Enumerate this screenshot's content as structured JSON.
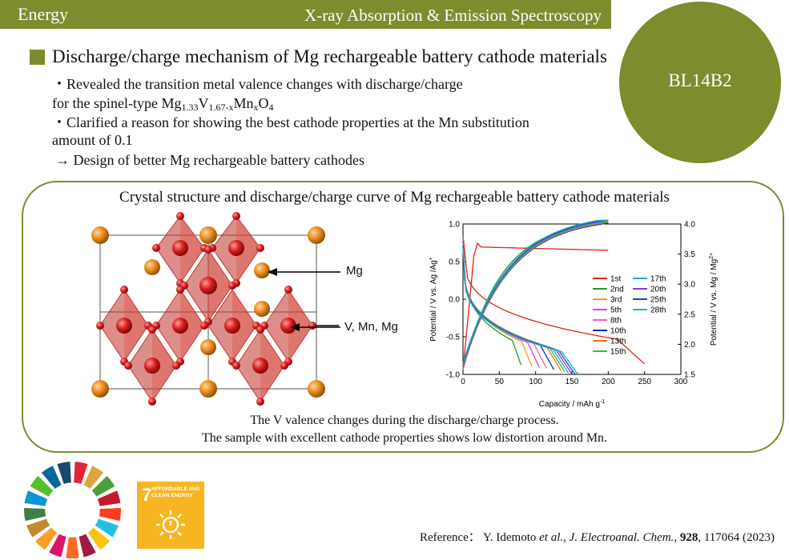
{
  "header": {
    "category": "Energy",
    "technique": "X-ray Absorption & Emission Spectroscopy"
  },
  "beamline": "BL14B2",
  "section_title": "Discharge/charge mechanism of Mg rechargeable battery cathode materials",
  "bullets": {
    "line1": "・Revealed the transition metal valence changes with discharge/charge",
    "line2_prefix": "for the spinel-type Mg",
    "formula_mg_sub": "1.33",
    "formula_v": "V",
    "formula_v_sub": "1.67-x",
    "formula_mn": "Mn",
    "formula_mn_sub": "x",
    "formula_o": "O",
    "formula_o_sub": "4",
    "line3": "・Clarified a reason for showing the best cathode properties at the Mn substitution",
    "line4": "amount of 0.1",
    "line5": "→ Design of better Mg rechargeable battery cathodes"
  },
  "figure": {
    "title": "Crystal structure and discharge/charge curve of Mg rechargeable battery cathode materials",
    "labels": {
      "mg": "Mg",
      "vmnmg": "V, Mn, Mg"
    },
    "caption1": "The V valence changes during the discharge/charge process.",
    "caption2": "The sample with excellent cathode properties shows low distortion around Mn."
  },
  "chart_data": {
    "type": "line",
    "xlabel": "Capacity / mAh g",
    "xlabel_sup": "-1",
    "ylabel_left": "Potential / V vs. Ag /Ag",
    "ylabel_left_sup": "+",
    "ylabel_right": "Potential / V vs. Mg / Mg",
    "ylabel_right_sup": "2+",
    "xlim": [
      0,
      300
    ],
    "ylim_left": [
      -1.0,
      1.0
    ],
    "ylim_right": [
      1.5,
      4.0
    ],
    "x_ticks": [
      "0",
      "50",
      "100",
      "150",
      "200",
      "250",
      "300"
    ],
    "y_left_ticks": [
      "-1.0",
      "-0.5",
      "0.0",
      "0.5",
      "1.0"
    ],
    "y_right_ticks": [
      "1.5",
      "2.0",
      "2.5",
      "3.0",
      "3.5",
      "4.0"
    ],
    "series": [
      {
        "name": "1st",
        "color": "#e0201c",
        "discharge_end": 250,
        "charge_end": 200
      },
      {
        "name": "2nd",
        "color": "#1a9a2a",
        "discharge_end": 80,
        "charge_end": 170
      },
      {
        "name": "3rd",
        "color": "#f5a01a",
        "discharge_end": 95,
        "charge_end": 185
      },
      {
        "name": "5th",
        "color": "#e040e0",
        "discharge_end": 105,
        "charge_end": 190
      },
      {
        "name": "8th",
        "color": "#f060b0",
        "discharge_end": 115,
        "charge_end": 195
      },
      {
        "name": "10th",
        "color": "#2020c0",
        "discharge_end": 125,
        "charge_end": 200
      },
      {
        "name": "13th",
        "color": "#f07010",
        "discharge_end": 135,
        "charge_end": 200
      },
      {
        "name": "15th",
        "color": "#30c030",
        "discharge_end": 140,
        "charge_end": 200
      },
      {
        "name": "17th",
        "color": "#20a0f0",
        "discharge_end": 145,
        "charge_end": 200
      },
      {
        "name": "20th",
        "color": "#8040c0",
        "discharge_end": 150,
        "charge_end": 200
      },
      {
        "name": "25th",
        "color": "#2040d0",
        "discharge_end": 155,
        "charge_end": 200
      },
      {
        "name": "28th",
        "color": "#20b0c0",
        "discharge_end": 160,
        "charge_end": 200
      }
    ]
  },
  "sdg": {
    "number": "7",
    "title": "AFFORDABLE AND CLEAN ENERGY"
  },
  "reference": {
    "prefix": "Reference： Y. Idemoto",
    "etal": "et al.",
    "sep": ", ",
    "journal": "J. Electroanal. Chem.",
    "comma": ", ",
    "volume": "928",
    "rest": ", 117064 (2023)"
  }
}
